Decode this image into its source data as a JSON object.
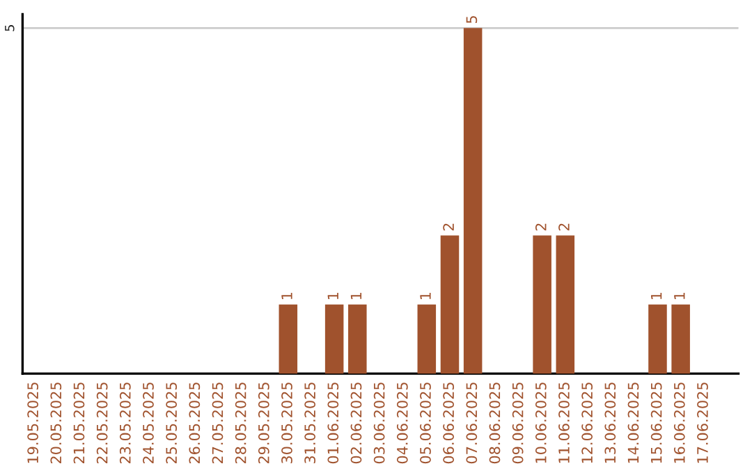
{
  "chart_data": {
    "type": "bar",
    "categories": [
      "19.05.2025",
      "20.05.2025",
      "21.05.2025",
      "22.05.2025",
      "23.05.2025",
      "24.05.2025",
      "25.05.2025",
      "26.05.2025",
      "27.05.2025",
      "28.05.2025",
      "29.05.2025",
      "30.05.2025",
      "31.05.2025",
      "01.06.2025",
      "02.06.2025",
      "03.06.2025",
      "04.06.2025",
      "05.06.2025",
      "06.06.2025",
      "07.06.2025",
      "08.06.2025",
      "09.06.2025",
      "10.06.2025",
      "11.06.2025",
      "12.06.2025",
      "13.06.2025",
      "14.06.2025",
      "15.06.2025",
      "16.06.2025",
      "17.06.2025"
    ],
    "values": [
      null,
      null,
      null,
      null,
      null,
      null,
      null,
      null,
      null,
      null,
      null,
      1,
      null,
      1,
      1,
      null,
      null,
      1,
      2,
      5,
      null,
      null,
      2,
      2,
      null,
      null,
      null,
      1,
      1,
      null
    ],
    "value_labels": [
      null,
      null,
      null,
      null,
      null,
      null,
      null,
      null,
      null,
      null,
      null,
      "1",
      null,
      "1",
      "1",
      null,
      null,
      "1",
      "2",
      "5",
      null,
      null,
      "2",
      "2",
      null,
      null,
      null,
      "1",
      "1",
      null
    ],
    "color": "#a0522d",
    "ylim": [
      0,
      5.2
    ],
    "yticks": [
      5
    ],
    "grid": "y",
    "legend": false
  }
}
